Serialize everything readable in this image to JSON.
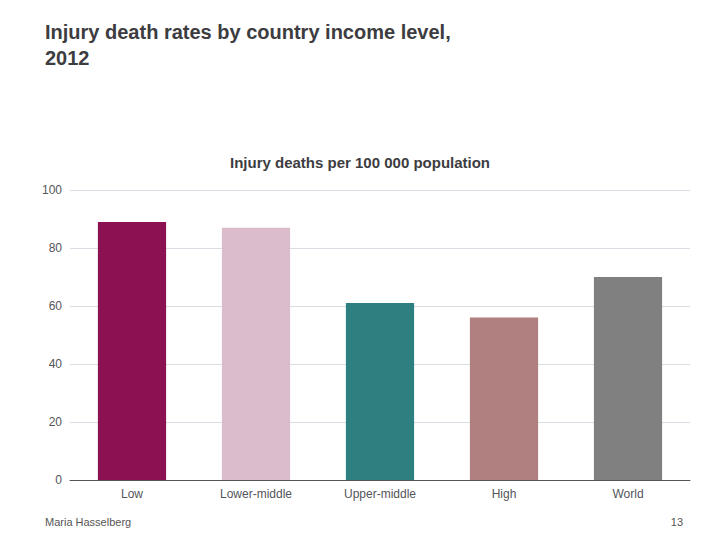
{
  "chart_data": {
    "type": "bar",
    "title": "Injury death rates by country income level,\n2012",
    "subtitle": "Injury deaths per 100 000 population",
    "categories": [
      "Low",
      "Lower-middle",
      "Upper-middle",
      "High",
      "World"
    ],
    "values": [
      89,
      87,
      61,
      56,
      70
    ],
    "colors": [
      "#8B1152",
      "#DBBCCC",
      "#2E7F7F",
      "#B08080",
      "#808080"
    ],
    "ylim": [
      0,
      100
    ],
    "yticks": [
      0,
      20,
      40,
      60,
      80,
      100
    ],
    "grid": true,
    "annotations": [
      "Maria Hasselberg",
      "13"
    ]
  }
}
